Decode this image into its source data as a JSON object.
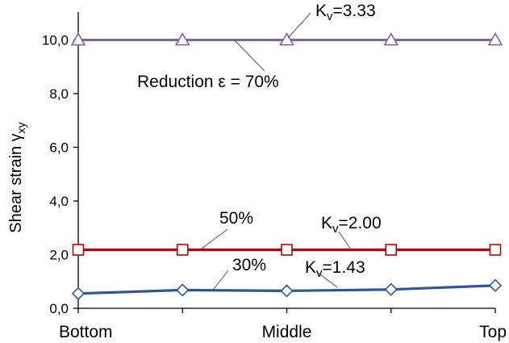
{
  "chart_data": {
    "type": "line",
    "x": [
      0,
      1,
      2,
      3,
      4
    ],
    "x_ticks": [
      {
        "x": 0,
        "label": "Bottom"
      },
      {
        "x": 2,
        "label": "Middle"
      },
      {
        "x": 4,
        "label": "Top"
      }
    ],
    "ylabel_main": "Shear strain ",
    "ylabel_symbol": "γ",
    "ylabel_sub": "xy",
    "ylim": [
      0,
      11
    ],
    "y_ticks": [
      {
        "value": 0,
        "label": "0,0"
      },
      {
        "value": 2,
        "label": "2,0"
      },
      {
        "value": 4,
        "label": "4,0"
      },
      {
        "value": 6,
        "label": "6,0"
      },
      {
        "value": 8,
        "label": "8,0"
      },
      {
        "value": 10,
        "label": "10,0"
      }
    ],
    "grid": false,
    "legend": "none",
    "series": [
      {
        "values": [
          0.55,
          0.68,
          0.65,
          0.7,
          0.85
        ],
        "color": "#2f5597",
        "marker": "diamond"
      },
      {
        "values": [
          2.18,
          2.18,
          2.18,
          2.18,
          2.18
        ],
        "color": "#c00000",
        "marker": "square"
      },
      {
        "values": [
          10.0,
          10.0,
          10.0,
          10.0,
          10.0
        ],
        "color": "#8064a2",
        "marker": "triangle"
      }
    ],
    "annotations": [
      {
        "id": "ann-30",
        "parts": [
          {
            "t": "30%"
          }
        ]
      },
      {
        "id": "ann-kv143",
        "parts": [
          {
            "t": "K"
          },
          {
            "t": "v",
            "sub": true
          },
          {
            "t": "=1.43"
          }
        ]
      },
      {
        "id": "ann-50",
        "parts": [
          {
            "t": "50%"
          }
        ]
      },
      {
        "id": "ann-kv200",
        "parts": [
          {
            "t": "K"
          },
          {
            "t": "v",
            "sub": true
          },
          {
            "t": "=2.00"
          }
        ]
      },
      {
        "id": "ann-kv333",
        "parts": [
          {
            "t": "K"
          },
          {
            "t": "v",
            "sub": true
          },
          {
            "t": "=3.33"
          }
        ]
      },
      {
        "id": "ann-reduction",
        "parts": [
          {
            "t": "Reduction ε = 70%"
          }
        ]
      }
    ]
  }
}
